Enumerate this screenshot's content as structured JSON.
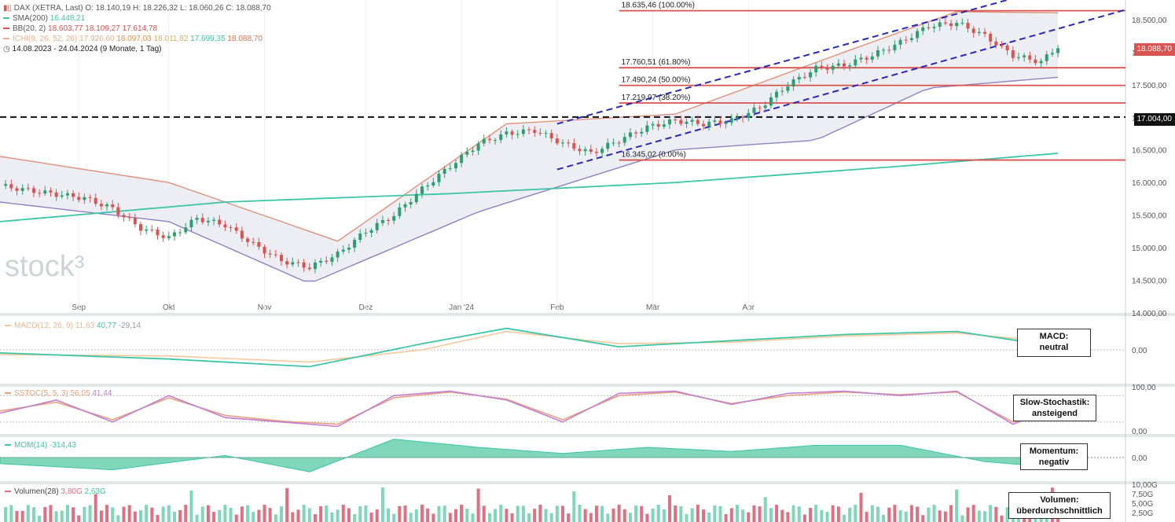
{
  "header": {
    "symbol_line": "DAX (XETRA, Last)  O: 18.140,19  H: 18.226,32  L: 18.060,26  C: 18.088,70",
    "range_line": "14.08.2023 - 24.04.2024  (9 Monate, 1 Tag)",
    "watermark": "stock³"
  },
  "indicators": {
    "sma": {
      "label": "SMA(200)",
      "value": "16.448,21",
      "color": "#3cc6a6"
    },
    "bb": {
      "label": "BB(20, 2)",
      "values": "18.603,77  18.109,27  17.614,78",
      "color": "#d9534f"
    },
    "ichimoku": {
      "label": "ICHI(9, 26, 52, 26)",
      "values": [
        "17.926,60",
        "18.097,03",
        "18.011,82",
        "17.699,35",
        "18.088,70"
      ],
      "colors": [
        "#e8b08a",
        "#e0904f",
        "#f0c890",
        "#5bd0b0",
        "#e07050"
      ]
    }
  },
  "panels": {
    "macd": {
      "label": "MACD(12, 26, 9)",
      "values": [
        "11,63",
        "40,77",
        "-29,14"
      ],
      "box": [
        "MACD:",
        "neutral"
      ]
    },
    "sstoc": {
      "label": "SSTOC(5, 5, 3)",
      "values": [
        "56,05",
        "41,44"
      ],
      "box": [
        "Slow-Stochastik:",
        "ansteigend"
      ]
    },
    "mom": {
      "label": "MOM(14)",
      "values": [
        "-314,43"
      ],
      "box": [
        "Momentum:",
        "negativ"
      ]
    },
    "volume": {
      "label": "Volumen(28)",
      "values": [
        "3,80G",
        "2,63G"
      ],
      "box": [
        "Volumen:",
        "überdurchschnittlich"
      ]
    }
  },
  "price_tags": {
    "current": "18.088,70",
    "level": "17.004,00"
  },
  "chart_data": {
    "type": "candlestick",
    "title": "DAX (XETRA, Last)",
    "x_labels": [
      "Sep",
      "Okt",
      "Nov",
      "Dez",
      "Jan '24",
      "Feb",
      "Mär",
      "Apr"
    ],
    "y_ticks": [
      18500,
      18000,
      17500,
      17000,
      16500,
      16000,
      15500,
      15000,
      14500,
      14000
    ],
    "y_tick_labels": [
      "18.500,00",
      "18.000,00",
      "17.500,00",
      "17.000,00",
      "16.500,00",
      "16.000,00",
      "15.500,00",
      "15.000,00",
      "14.500,00",
      "14.000,00"
    ],
    "ylim": [
      14000,
      18800
    ],
    "close_path": [
      [
        0,
        15950
      ],
      [
        5,
        15880
      ],
      [
        10,
        15820
      ],
      [
        15,
        15760
      ],
      [
        20,
        15600
      ],
      [
        25,
        15300
      ],
      [
        30,
        15150
      ],
      [
        35,
        15450
      ],
      [
        40,
        15350
      ],
      [
        45,
        15050
      ],
      [
        50,
        14800
      ],
      [
        55,
        14700
      ],
      [
        60,
        14900
      ],
      [
        65,
        15250
      ],
      [
        70,
        15500
      ],
      [
        75,
        15900
      ],
      [
        80,
        16250
      ],
      [
        85,
        16600
      ],
      [
        90,
        16750
      ],
      [
        95,
        16800
      ],
      [
        100,
        16600
      ],
      [
        105,
        16450
      ],
      [
        110,
        16650
      ],
      [
        115,
        16850
      ],
      [
        120,
        16950
      ],
      [
        125,
        16900
      ],
      [
        130,
        16950
      ],
      [
        135,
        17150
      ],
      [
        140,
        17500
      ],
      [
        145,
        17750
      ],
      [
        150,
        17800
      ],
      [
        155,
        17950
      ],
      [
        160,
        18150
      ],
      [
        165,
        18400
      ],
      [
        170,
        18450
      ],
      [
        175,
        18250
      ],
      [
        180,
        17950
      ],
      [
        185,
        17850
      ],
      [
        188,
        18089
      ]
    ],
    "x_extent": 200,
    "fib_levels": [
      {
        "value": 18635.46,
        "label": "18.635,46 (100.00%)"
      },
      {
        "value": 17760.51,
        "label": "17.760,51 (61.80%)"
      },
      {
        "value": 17490.24,
        "label": "17.490,24 (50.00%)"
      },
      {
        "value": 17219.97,
        "label": "17.219,97 (38.20%)"
      },
      {
        "value": 16345.02,
        "label": "16.345,02 (0.00%)"
      }
    ],
    "horizontal_levels": [
      17004.0
    ],
    "sma200": [
      [
        0,
        15400
      ],
      [
        40,
        15700
      ],
      [
        80,
        15830
      ],
      [
        120,
        16000
      ],
      [
        160,
        16250
      ],
      [
        188,
        16448
      ]
    ],
    "bb_upper": [
      [
        0,
        16400
      ],
      [
        30,
        16000
      ],
      [
        60,
        15100
      ],
      [
        90,
        16900
      ],
      [
        120,
        17050
      ],
      [
        150,
        18000
      ],
      [
        170,
        18620
      ],
      [
        188,
        18604
      ]
    ],
    "bb_lower": [
      [
        0,
        15700
      ],
      [
        30,
        15400
      ],
      [
        55,
        14450
      ],
      [
        85,
        15550
      ],
      [
        120,
        16500
      ],
      [
        145,
        16650
      ],
      [
        165,
        17450
      ],
      [
        188,
        17615
      ]
    ],
    "macd": {
      "ylim": [
        -1,
        1
      ],
      "y_tick_labels": [
        "0,00"
      ],
      "line": [
        [
          0,
          -0.1
        ],
        [
          30,
          -0.3
        ],
        [
          55,
          -0.55
        ],
        [
          75,
          0.2
        ],
        [
          90,
          0.7
        ],
        [
          110,
          0.1
        ],
        [
          130,
          0.3
        ],
        [
          150,
          0.5
        ],
        [
          170,
          0.6
        ],
        [
          188,
          0.1
        ]
      ],
      "signal": [
        [
          0,
          -0.15
        ],
        [
          30,
          -0.2
        ],
        [
          55,
          -0.4
        ],
        [
          75,
          0.0
        ],
        [
          90,
          0.6
        ],
        [
          110,
          0.2
        ],
        [
          130,
          0.25
        ],
        [
          150,
          0.45
        ],
        [
          170,
          0.55
        ],
        [
          188,
          0.25
        ]
      ]
    },
    "sstoc": {
      "ylim": [
        0,
        100
      ],
      "y_tick_labels": [
        "100,00",
        "0,00"
      ],
      "k": [
        [
          0,
          40
        ],
        [
          10,
          70
        ],
        [
          20,
          20
        ],
        [
          30,
          80
        ],
        [
          40,
          30
        ],
        [
          50,
          20
        ],
        [
          60,
          10
        ],
        [
          70,
          80
        ],
        [
          80,
          90
        ],
        [
          90,
          70
        ],
        [
          100,
          20
        ],
        [
          110,
          85
        ],
        [
          120,
          90
        ],
        [
          130,
          60
        ],
        [
          140,
          85
        ],
        [
          150,
          90
        ],
        [
          160,
          80
        ],
        [
          170,
          90
        ],
        [
          180,
          15
        ],
        [
          188,
          56
        ]
      ],
      "d": [
        [
          0,
          45
        ],
        [
          10,
          65
        ],
        [
          20,
          25
        ],
        [
          30,
          75
        ],
        [
          40,
          35
        ],
        [
          50,
          22
        ],
        [
          60,
          15
        ],
        [
          70,
          75
        ],
        [
          80,
          88
        ],
        [
          90,
          72
        ],
        [
          100,
          25
        ],
        [
          110,
          80
        ],
        [
          120,
          88
        ],
        [
          130,
          62
        ],
        [
          140,
          80
        ],
        [
          150,
          88
        ],
        [
          160,
          82
        ],
        [
          170,
          88
        ],
        [
          180,
          20
        ],
        [
          188,
          41
        ]
      ]
    },
    "mom": {
      "ylim": [
        -1,
        1
      ],
      "y_tick_labels": [
        "0,00"
      ],
      "values": [
        [
          0,
          -0.3
        ],
        [
          20,
          -0.6
        ],
        [
          40,
          0.1
        ],
        [
          55,
          -0.7
        ],
        [
          70,
          0.9
        ],
        [
          85,
          0.5
        ],
        [
          100,
          0.2
        ],
        [
          115,
          0.5
        ],
        [
          130,
          0.3
        ],
        [
          145,
          0.6
        ],
        [
          160,
          0.6
        ],
        [
          175,
          -0.2
        ],
        [
          188,
          -0.5
        ]
      ]
    },
    "volume": {
      "y_tick_labels": [
        "10,00G",
        "7,50G",
        "5,00G",
        "2,50G"
      ]
    }
  }
}
